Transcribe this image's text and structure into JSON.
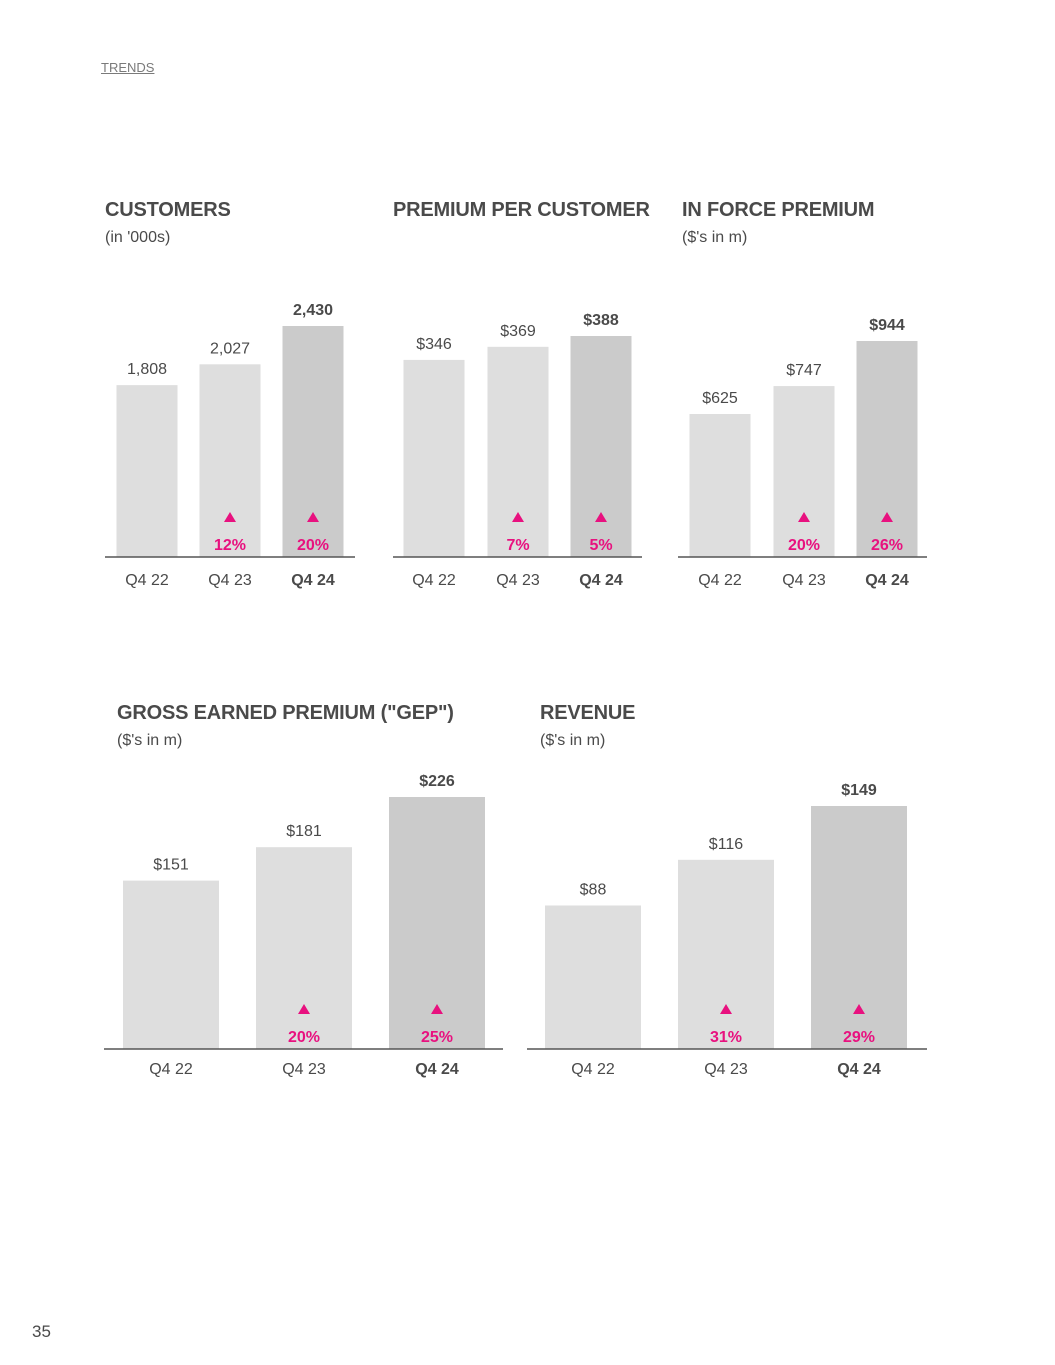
{
  "header": {
    "section_link": "TRENDS"
  },
  "page": {
    "number": "35"
  },
  "colors": {
    "bar_light": "#dedede",
    "bar_dark": "#cbcbcb",
    "axis": "#555555",
    "accent": "#e8117f",
    "text": "#4a4a4a"
  },
  "chart_data": [
    {
      "type": "bar",
      "title": "CUSTOMERS",
      "subtitle": "(in '000s)",
      "categories": [
        "Q4 22",
        "Q4 23",
        "Q4 24"
      ],
      "values": [
        1808,
        2027,
        2430
      ],
      "value_labels": [
        "1,808",
        "2,027",
        "2,430"
      ],
      "growth": [
        "",
        "12%",
        "20%"
      ],
      "ylim": [
        0,
        2430
      ],
      "highlight_index": 2
    },
    {
      "type": "bar",
      "title": "PREMIUM PER CUSTOMER",
      "subtitle": "",
      "categories": [
        "Q4 22",
        "Q4 23",
        "Q4 24"
      ],
      "values": [
        346,
        369,
        388
      ],
      "value_labels": [
        "$346",
        "$369",
        "$388"
      ],
      "growth": [
        "",
        "7%",
        "5%"
      ],
      "ylim": [
        0,
        388
      ],
      "highlight_index": 2
    },
    {
      "type": "bar",
      "title": "IN FORCE PREMIUM",
      "subtitle": "($'s in m)",
      "categories": [
        "Q4 22",
        "Q4 23",
        "Q4 24"
      ],
      "values": [
        625,
        747,
        944
      ],
      "value_labels": [
        "$625",
        "$747",
        "$944"
      ],
      "growth": [
        "",
        "20%",
        "26%"
      ],
      "ylim": [
        0,
        944
      ],
      "highlight_index": 2
    },
    {
      "type": "bar",
      "title": "GROSS EARNED PREMIUM (\"GEP\")",
      "subtitle": "($'s in m)",
      "categories": [
        "Q4 22",
        "Q4 23",
        "Q4 24"
      ],
      "values": [
        151,
        181,
        226
      ],
      "value_labels": [
        "$151",
        "$181",
        "$226"
      ],
      "growth": [
        "",
        "20%",
        "25%"
      ],
      "ylim": [
        0,
        226
      ],
      "highlight_index": 2
    },
    {
      "type": "bar",
      "title": "REVENUE",
      "subtitle": "($'s in m)",
      "categories": [
        "Q4 22",
        "Q4 23",
        "Q4 24"
      ],
      "values": [
        88,
        116,
        149
      ],
      "value_labels": [
        "$88",
        "$116",
        "$149"
      ],
      "growth": [
        "",
        "31%",
        "29%"
      ],
      "ylim": [
        0,
        149
      ],
      "highlight_index": 2
    }
  ]
}
